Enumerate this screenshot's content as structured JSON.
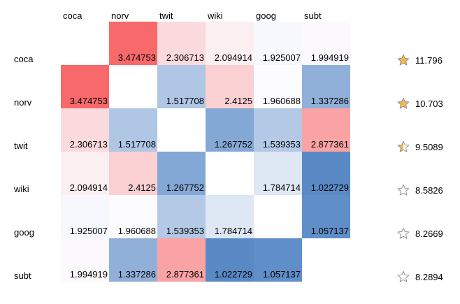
{
  "labels": [
    "coca",
    "norv",
    "twit",
    "wiki",
    "goog",
    "subt"
  ],
  "matrix": [
    [
      null,
      "3.474753",
      "2.306713",
      "2.094914",
      "1.925007",
      "1.994919"
    ],
    [
      "3.474753",
      null,
      "1.517708",
      "2.4125",
      "1.960688",
      "1.337286"
    ],
    [
      "2.306713",
      "1.517708",
      null,
      "1.267752",
      "1.539353",
      "2.877361"
    ],
    [
      "2.094914",
      "2.4125",
      "1.267752",
      null,
      "1.784714",
      "1.022729"
    ],
    [
      "1.925007",
      "1.960688",
      "1.539353",
      "1.784714",
      null,
      "1.057137"
    ],
    [
      "1.994919",
      "1.337286",
      "2.877361",
      "1.022729",
      "1.057137",
      null
    ]
  ],
  "scores": [
    {
      "value": "11.796",
      "rating": "full"
    },
    {
      "value": "10.703",
      "rating": "full"
    },
    {
      "value": "9.5089",
      "rating": "half"
    },
    {
      "value": "8.5826",
      "rating": "empty"
    },
    {
      "value": "8.2669",
      "rating": "empty"
    },
    {
      "value": "8.2894",
      "rating": "empty"
    }
  ],
  "colors": {
    "high": "#f8696b",
    "mid": "#fcfcff",
    "low": "#5a8ac6",
    "star_fill": "#f2b84b",
    "star_stroke": "#8a8a8a"
  },
  "scale": {
    "min": 1.022729,
    "mid": 1.960688,
    "max": 3.474753
  }
}
